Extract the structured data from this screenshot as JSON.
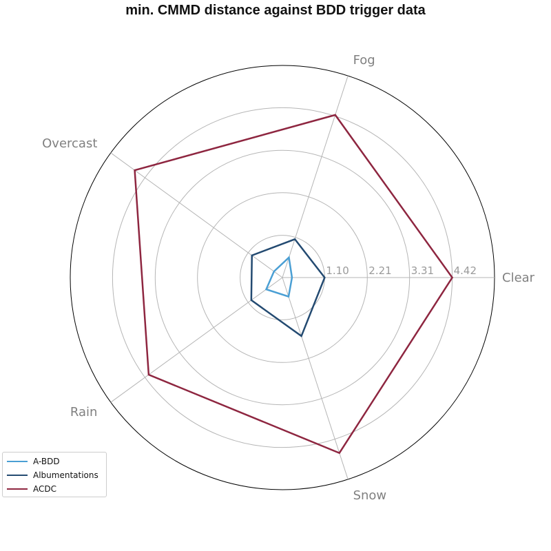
{
  "title": "min. CMMD distance against BDD trigger data",
  "chart_data": {
    "type": "radar",
    "axes": [
      "Clear",
      "Fog",
      "Overcast",
      "Rain",
      "Snow"
    ],
    "rlim": [
      0,
      5.52
    ],
    "ticks": [
      1.1,
      2.21,
      3.31,
      4.42
    ],
    "tick_labels": [
      "1.10",
      "2.21",
      "3.31",
      "4.42"
    ],
    "grid": true,
    "legend": "lower-left",
    "series": [
      {
        "name": "A-BDD",
        "color": "#4a9fd4",
        "values": [
          0.25,
          0.55,
          0.27,
          0.52,
          0.52
        ]
      },
      {
        "name": "Albumentations",
        "color": "#234a71",
        "values": [
          1.1,
          1.05,
          0.98,
          1.0,
          1.6
        ]
      },
      {
        "name": "ACDC",
        "color": "#8e2640",
        "values": [
          4.42,
          4.45,
          4.75,
          4.3,
          4.8
        ]
      }
    ]
  }
}
